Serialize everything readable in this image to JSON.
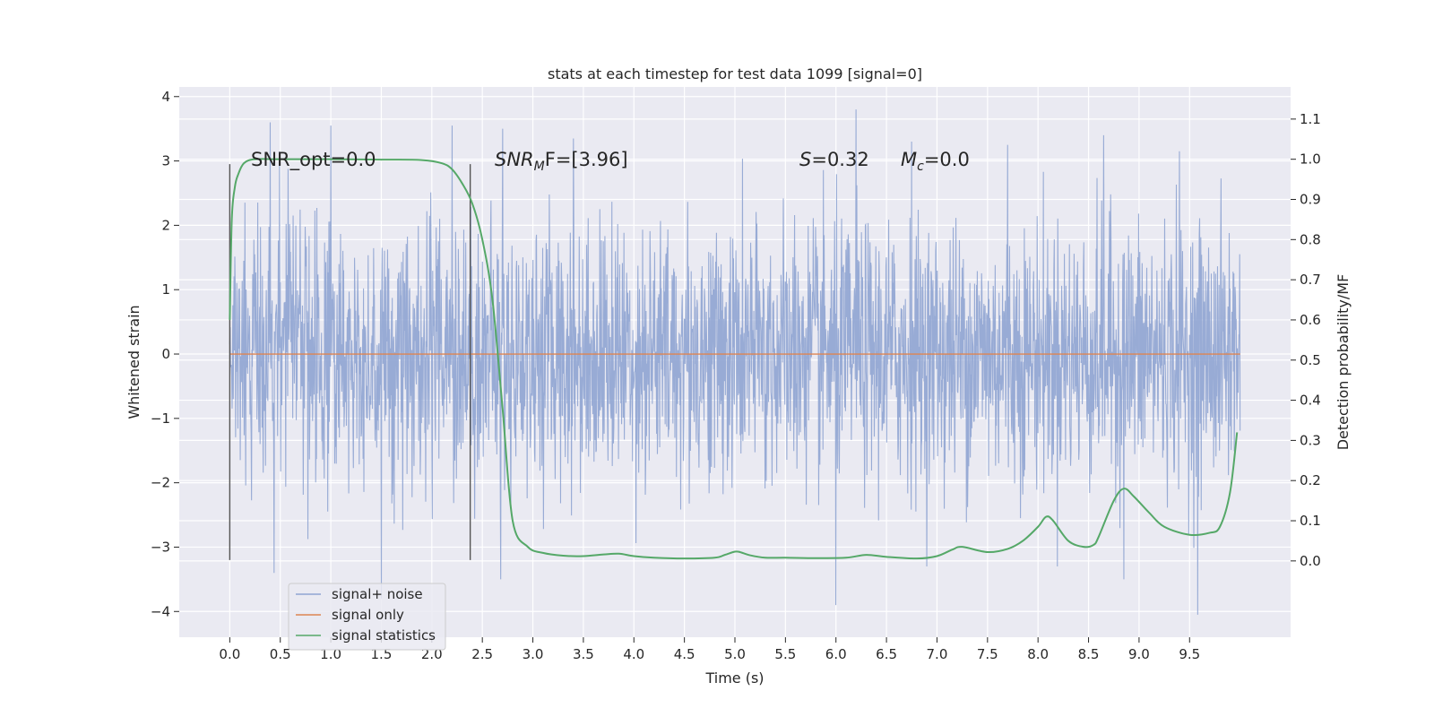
{
  "chart_data": {
    "type": "line",
    "title": "stats at each timestep for test data 1099 [signal=0]",
    "xlabel": "Time (s)",
    "ylabel": "Whitened strain",
    "y2label": "Detection probability/MF",
    "xlim": [
      -0.5,
      10.5
    ],
    "ylim": [
      -4.4,
      4.15
    ],
    "y2lim": [
      -0.19,
      1.18
    ],
    "x_ticks": [
      "0.0",
      "0.5",
      "1.0",
      "1.5",
      "2.0",
      "2.5",
      "3.0",
      "3.5",
      "4.0",
      "4.5",
      "5.0",
      "5.5",
      "6.0",
      "6.5",
      "7.0",
      "7.5",
      "8.0",
      "8.5",
      "9.0",
      "9.5"
    ],
    "y_ticks": [
      "4",
      "3",
      "2",
      "1",
      "0",
      "−1",
      "−2",
      "−3",
      "−4"
    ],
    "y2_ticks": [
      "0.0",
      "0.1",
      "0.2",
      "0.3",
      "0.4",
      "0.5",
      "0.6",
      "0.7",
      "0.8",
      "0.9",
      "1.0",
      "1.1"
    ],
    "grid": true,
    "legend_position": "lower-left",
    "annotations": {
      "snr_opt": "SNR_opt=0.0",
      "snr_mf_main": "SNR",
      "snr_mf_sub": "M",
      "snr_mf_rest": "F=[3.96]",
      "s_var": "S",
      "s_val": "=0.32",
      "mc_var": "M",
      "mc_sub": "c",
      "mc_val": "=0.0"
    },
    "vertical_markers": [
      0.0,
      2.38
    ],
    "series": [
      {
        "name": "signal+ noise",
        "axis": "left",
        "color": "#8fa4d2",
        "noise_description": "whitened noise, approx. gaussian, peaks within [-4.0, 3.8]",
        "x_range": [
          0.0,
          10.0
        ],
        "peak_values": [
          [
            0.4,
            3.6
          ],
          [
            1.0,
            3.55
          ],
          [
            2.2,
            3.55
          ],
          [
            2.7,
            3.5
          ],
          [
            3.4,
            3.35
          ],
          [
            6.2,
            3.8
          ],
          [
            6.75,
            3.3
          ],
          [
            7.7,
            3.25
          ],
          [
            8.65,
            3.4
          ],
          [
            9.4,
            3.15
          ],
          [
            0.44,
            -3.4
          ],
          [
            1.5,
            -3.8
          ],
          [
            2.68,
            -3.5
          ],
          [
            6.0,
            -3.9
          ],
          [
            8.85,
            -3.5
          ],
          [
            9.58,
            -4.05
          ]
        ]
      },
      {
        "name": "signal only",
        "axis": "left",
        "color": "#dd8452",
        "x": [
          0.0,
          10.0
        ],
        "y": [
          0.0,
          0.0
        ]
      },
      {
        "name": "signal statistics",
        "axis": "right",
        "color": "#55a868",
        "x": [
          0.0,
          0.02,
          0.05,
          0.08,
          0.14,
          0.25,
          0.5,
          1.0,
          1.5,
          1.9,
          2.1,
          2.2,
          2.3,
          2.4,
          2.5,
          2.6,
          2.7,
          2.8,
          2.95,
          3.1,
          3.3,
          3.5,
          3.7,
          3.85,
          4.0,
          4.2,
          4.5,
          4.8,
          4.9,
          5.0,
          5.05,
          5.15,
          5.3,
          5.5,
          5.8,
          6.1,
          6.3,
          6.5,
          6.8,
          7.0,
          7.15,
          7.25,
          7.5,
          7.7,
          7.85,
          8.0,
          8.08,
          8.15,
          8.3,
          8.45,
          8.55,
          8.6,
          8.75,
          8.85,
          8.95,
          9.1,
          9.25,
          9.5,
          9.7,
          9.8,
          9.9,
          9.97
        ],
        "y": [
          0.6,
          0.85,
          0.93,
          0.96,
          0.99,
          1.0,
          1.0,
          1.0,
          0.999,
          0.998,
          0.99,
          0.975,
          0.94,
          0.89,
          0.8,
          0.65,
          0.38,
          0.1,
          0.035,
          0.02,
          0.013,
          0.012,
          0.016,
          0.018,
          0.012,
          0.008,
          0.006,
          0.008,
          0.015,
          0.023,
          0.022,
          0.014,
          0.008,
          0.008,
          0.007,
          0.008,
          0.015,
          0.01,
          0.006,
          0.012,
          0.028,
          0.035,
          0.022,
          0.03,
          0.05,
          0.085,
          0.11,
          0.1,
          0.05,
          0.035,
          0.04,
          0.06,
          0.15,
          0.18,
          0.16,
          0.12,
          0.085,
          0.065,
          0.07,
          0.085,
          0.17,
          0.32
        ]
      }
    ]
  }
}
